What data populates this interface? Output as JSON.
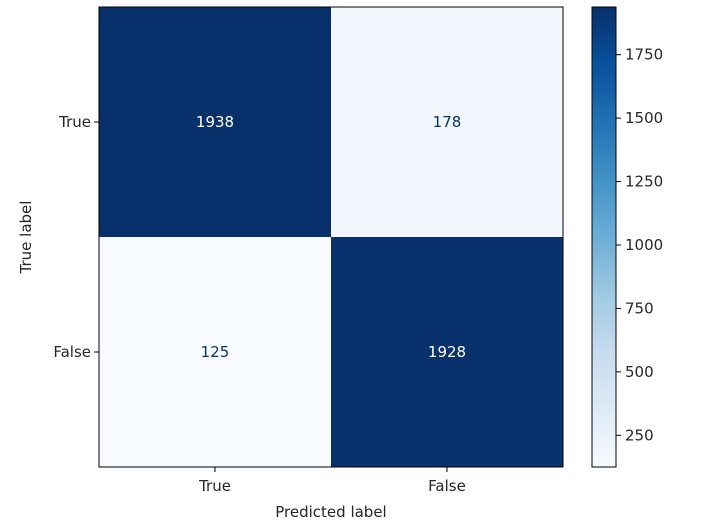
{
  "chart_data": {
    "type": "heatmap",
    "title": "",
    "xlabel": "Predicted label",
    "ylabel": "True label",
    "x_categories": [
      "True",
      "False"
    ],
    "y_categories": [
      "True",
      "False"
    ],
    "values": [
      [
        1938,
        178
      ],
      [
        125,
        1928
      ]
    ],
    "colormap": "Blues",
    "colorbar": {
      "ticks": [
        250,
        500,
        750,
        1000,
        1250,
        1500,
        1750
      ],
      "range": [
        125,
        1938
      ]
    },
    "colors": {
      "low": "#f7fbff",
      "high": "#08306b",
      "text_light": "#ffffff",
      "text_dark": "#08306b"
    }
  }
}
